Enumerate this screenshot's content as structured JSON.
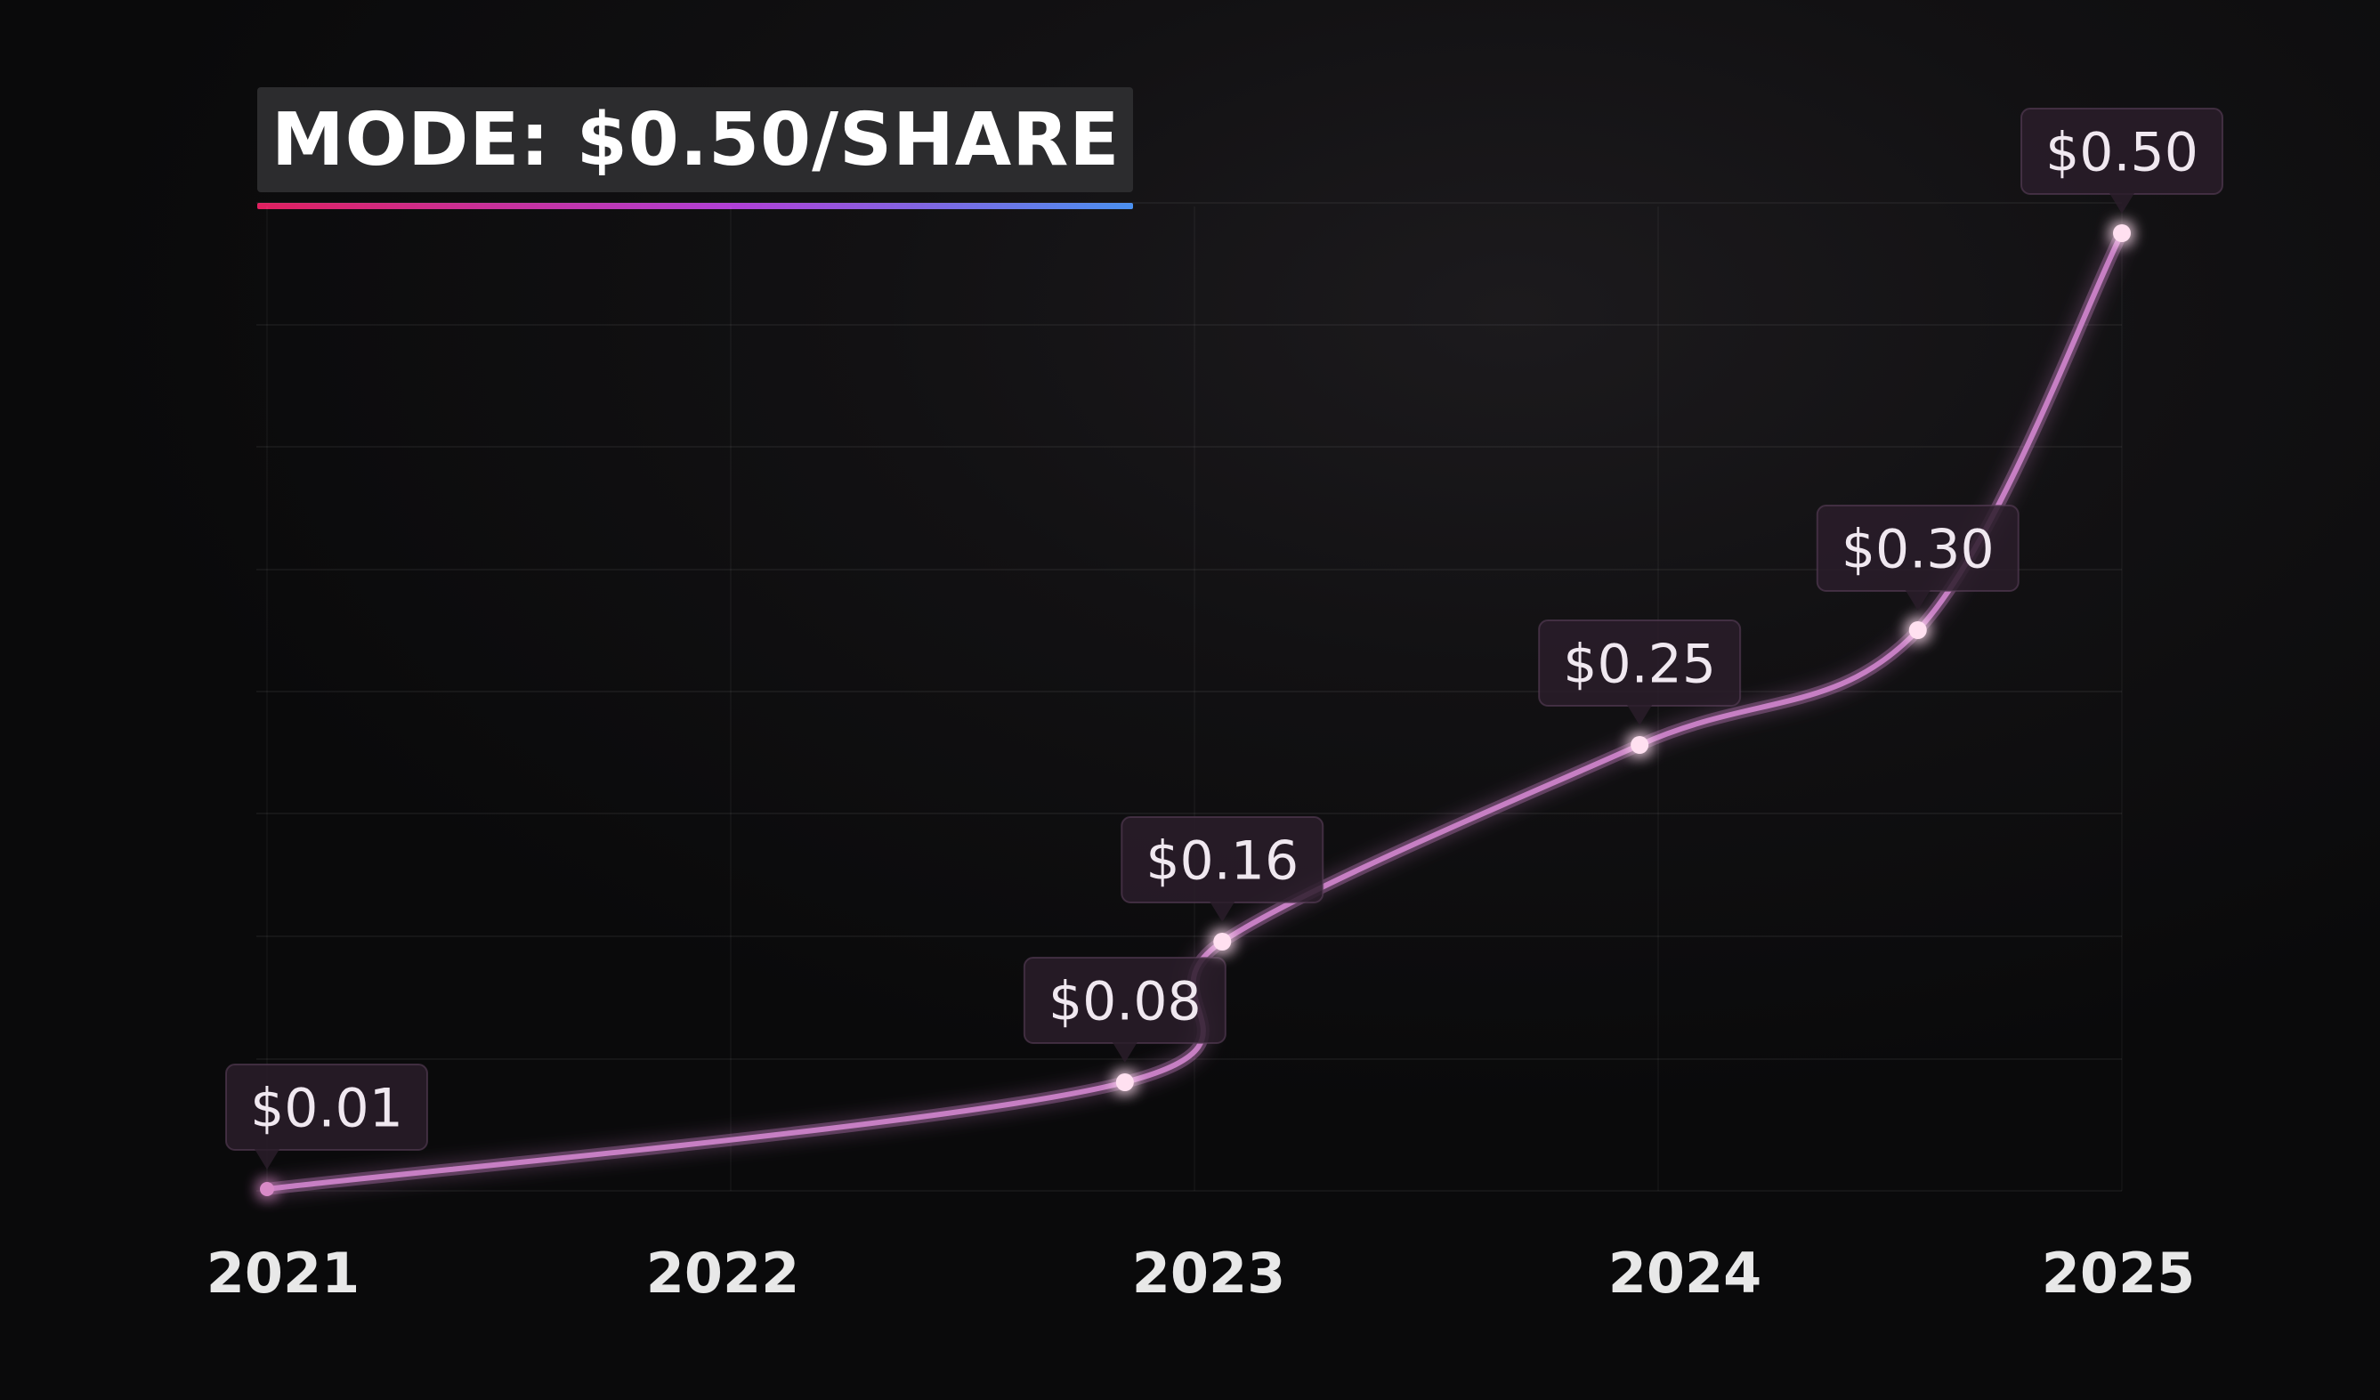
{
  "chart_data": {
    "type": "line",
    "title": "MODE: $0.50/SHARE",
    "x_ticks": [
      "2021",
      "2022",
      "2023",
      "2024",
      "2025"
    ],
    "points": [
      {
        "x": 2021.0,
        "y": 0.01,
        "label": "$0.01"
      },
      {
        "x": 2022.85,
        "y": 0.08,
        "label": "$0.08"
      },
      {
        "x": 2023.06,
        "y": 0.16,
        "label": "$0.16"
      },
      {
        "x": 2023.96,
        "y": 0.25,
        "label": "$0.25"
      },
      {
        "x": 2024.56,
        "y": 0.3,
        "label": "$0.30"
      },
      {
        "x": 2025.0,
        "y": 0.5,
        "label": "$0.50"
      }
    ],
    "xlim": [
      2021,
      2025
    ],
    "ylim": [
      0,
      0.5
    ],
    "grid": true,
    "line_color": "#c77fc4",
    "point_color": "#ffe0f0",
    "label_bg_color": "#2a1d2a",
    "axis_text_color": "#e8e8e8"
  }
}
